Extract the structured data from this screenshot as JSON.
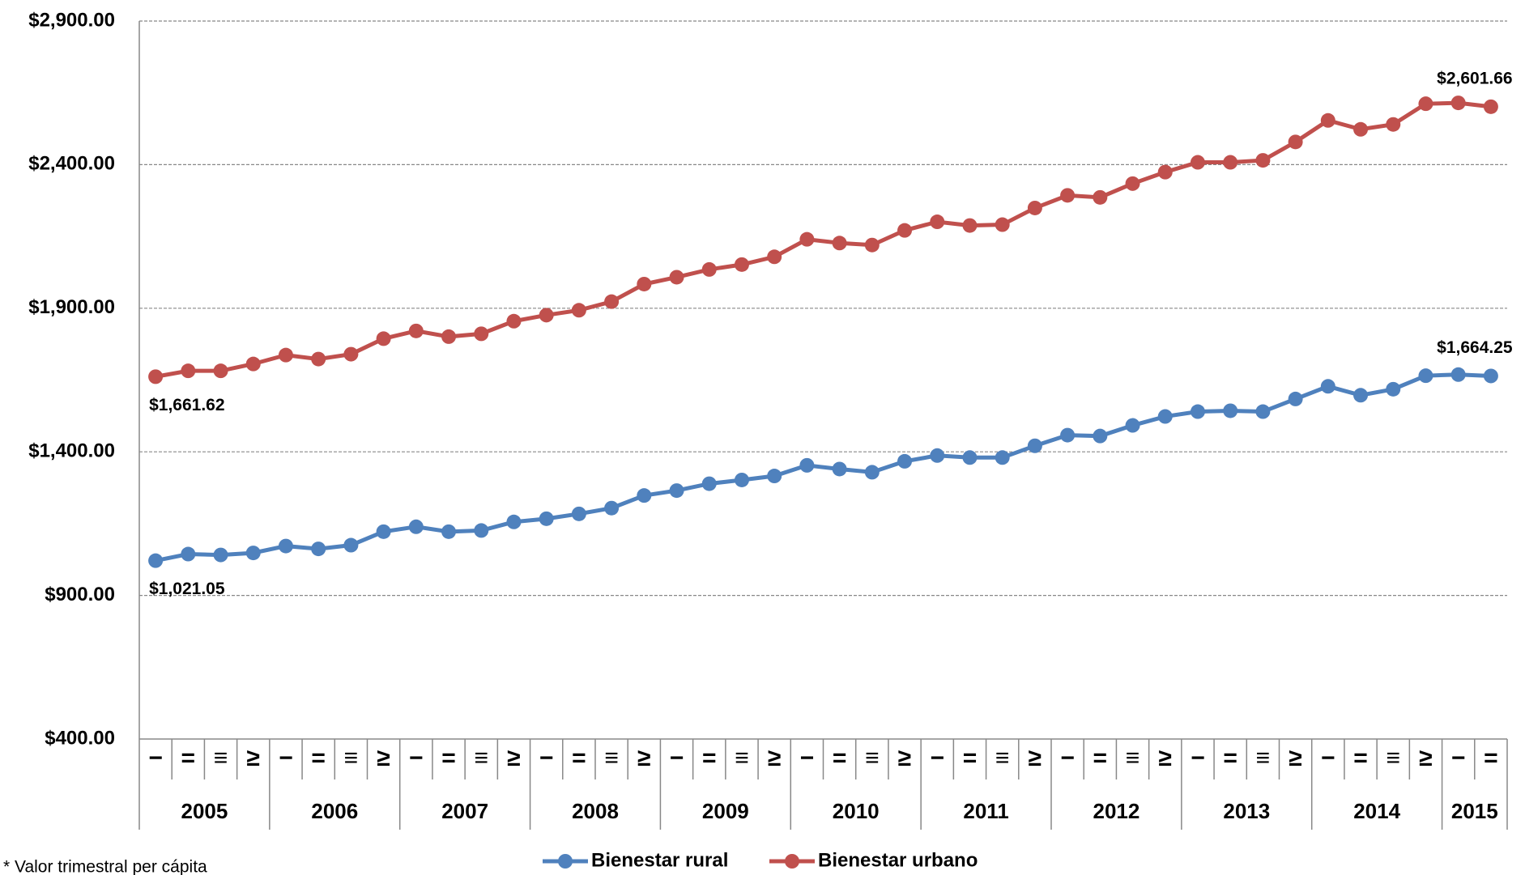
{
  "chart_data": {
    "type": "line",
    "categories": [
      "−",
      "=",
      "≡",
      "≥",
      "−",
      "=",
      "≡",
      "≥",
      "−",
      "=",
      "≡",
      "≥",
      "−",
      "=",
      "≡",
      "≥",
      "−",
      "=",
      "≡",
      "≥",
      "−",
      "=",
      "≡",
      "≥",
      "−",
      "=",
      "≡",
      "≥",
      "−",
      "=",
      "≡",
      "≥",
      "−",
      "=",
      "≡",
      "≥",
      "−",
      "=",
      "≡",
      "≥",
      "−",
      "="
    ],
    "category_groups": [
      "2005",
      null,
      null,
      null,
      "2006",
      null,
      null,
      null,
      "2007",
      null,
      null,
      null,
      "2008",
      null,
      null,
      null,
      "2009",
      null,
      null,
      null,
      "2010",
      null,
      null,
      null,
      "2011",
      null,
      null,
      null,
      "2012",
      null,
      null,
      null,
      "2013",
      null,
      null,
      null,
      "2014",
      null,
      null,
      null,
      "2015",
      null
    ],
    "series": [
      {
        "name": "Bienestar rural",
        "color": "#4f81bd",
        "values": [
          1021.05,
          1044,
          1041,
          1048,
          1072,
          1062,
          1075,
          1122,
          1139,
          1122,
          1126,
          1156,
          1167,
          1184,
          1204,
          1248,
          1265,
          1289,
          1302,
          1316,
          1353,
          1340,
          1329,
          1367,
          1387,
          1380,
          1380,
          1421,
          1458,
          1455,
          1492,
          1523,
          1540,
          1543,
          1540,
          1584,
          1628,
          1597,
          1618,
          1665,
          1669,
          1664.25
        ],
        "value_labels": [
          "$1,021.05",
          null,
          null,
          null,
          null,
          null,
          null,
          null,
          null,
          null,
          null,
          null,
          null,
          null,
          null,
          null,
          null,
          null,
          null,
          null,
          null,
          null,
          null,
          null,
          null,
          null,
          null,
          null,
          null,
          null,
          null,
          null,
          null,
          null,
          null,
          null,
          null,
          null,
          null,
          null,
          null,
          "$1,664.25"
        ]
      },
      {
        "name": "Bienestar urbano",
        "color": "#c0504d",
        "values": [
          1661.62,
          1682,
          1682,
          1706,
          1737,
          1723,
          1740,
          1794,
          1821,
          1801,
          1811,
          1855,
          1876,
          1893,
          1923,
          1984,
          2008,
          2035,
          2052,
          2079,
          2140,
          2127,
          2120,
          2171,
          2201,
          2188,
          2191,
          2249,
          2293,
          2286,
          2334,
          2374,
          2408,
          2408,
          2415,
          2479,
          2554,
          2523,
          2540,
          2612,
          2615,
          2601.66
        ],
        "value_labels": [
          "$1,661.62",
          null,
          null,
          null,
          null,
          null,
          null,
          null,
          null,
          null,
          null,
          null,
          null,
          null,
          null,
          null,
          null,
          null,
          null,
          null,
          null,
          null,
          null,
          null,
          null,
          null,
          null,
          null,
          null,
          null,
          null,
          null,
          null,
          null,
          null,
          null,
          null,
          null,
          null,
          null,
          null,
          "$2,601.66"
        ]
      }
    ],
    "ylim": [
      400,
      2900
    ],
    "yticks": [
      {
        "value": 400,
        "label": "$400.00"
      },
      {
        "value": 900,
        "label": "$900.00"
      },
      {
        "value": 1400,
        "label": "$1,400.00"
      },
      {
        "value": 1900,
        "label": "$1,900.00"
      },
      {
        "value": 2400,
        "label": "$2,400.00"
      },
      {
        "value": 2900,
        "label": "$2,900.00"
      }
    ],
    "grid": true,
    "legend": "bottom",
    "footnote": "* Valor trimestral per cápita"
  }
}
